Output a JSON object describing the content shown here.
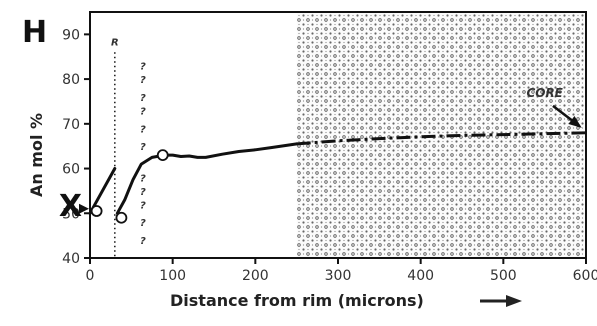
{
  "chart_data": {
    "type": "line",
    "panel_label": "H",
    "xlabel": "Distance from rim (microns)",
    "ylabel": "An mol %",
    "xlim": [
      0,
      600
    ],
    "ylim": [
      40,
      95
    ],
    "x_ticks": [
      0,
      100,
      200,
      300,
      400,
      500,
      600
    ],
    "x_tick_labels": [
      "0",
      "100",
      "200",
      "300",
      "400",
      "500",
      "600"
    ],
    "y_ticks": [
      40,
      50,
      60,
      70,
      80,
      90
    ],
    "y_tick_labels": [
      "40",
      "50",
      "60",
      "70",
      "80",
      "90"
    ],
    "grid": false,
    "core_region": {
      "x_start": 250,
      "x_end": 600,
      "label": "CORE",
      "pattern": "stippled"
    },
    "marker_R": {
      "x": 30,
      "label": "R"
    },
    "question_marks": {
      "x": 64,
      "symbol": "?",
      "y_values": [
        83,
        80,
        76,
        73,
        69,
        65,
        58,
        55,
        52,
        48,
        44
      ]
    },
    "x_marker": {
      "x": 0,
      "y": 51,
      "label": "X"
    },
    "series": [
      {
        "style": "solid",
        "points": [
          [
            0,
            50
          ],
          [
            30,
            60
          ]
        ]
      },
      {
        "style": "solid",
        "points": [
          [
            33,
            50
          ],
          [
            42,
            53
          ],
          [
            52,
            57.5
          ],
          [
            62,
            61
          ],
          [
            75,
            62.5
          ],
          [
            90,
            63
          ],
          [
            100,
            63
          ],
          [
            110,
            62.7
          ],
          [
            120,
            62.8
          ],
          [
            130,
            62.5
          ],
          [
            140,
            62.5
          ],
          [
            160,
            63.2
          ],
          [
            180,
            63.8
          ],
          [
            200,
            64.2
          ],
          [
            220,
            64.7
          ],
          [
            250,
            65.5
          ]
        ]
      },
      {
        "style": "dash-dot",
        "points": [
          [
            250,
            65.5
          ],
          [
            300,
            66.2
          ],
          [
            350,
            66.7
          ],
          [
            400,
            67.1
          ],
          [
            450,
            67.4
          ],
          [
            500,
            67.6
          ],
          [
            550,
            67.8
          ],
          [
            600,
            68
          ]
        ]
      }
    ],
    "open_circles": [
      [
        8,
        50.5
      ],
      [
        38,
        49
      ],
      [
        88,
        63
      ]
    ]
  }
}
